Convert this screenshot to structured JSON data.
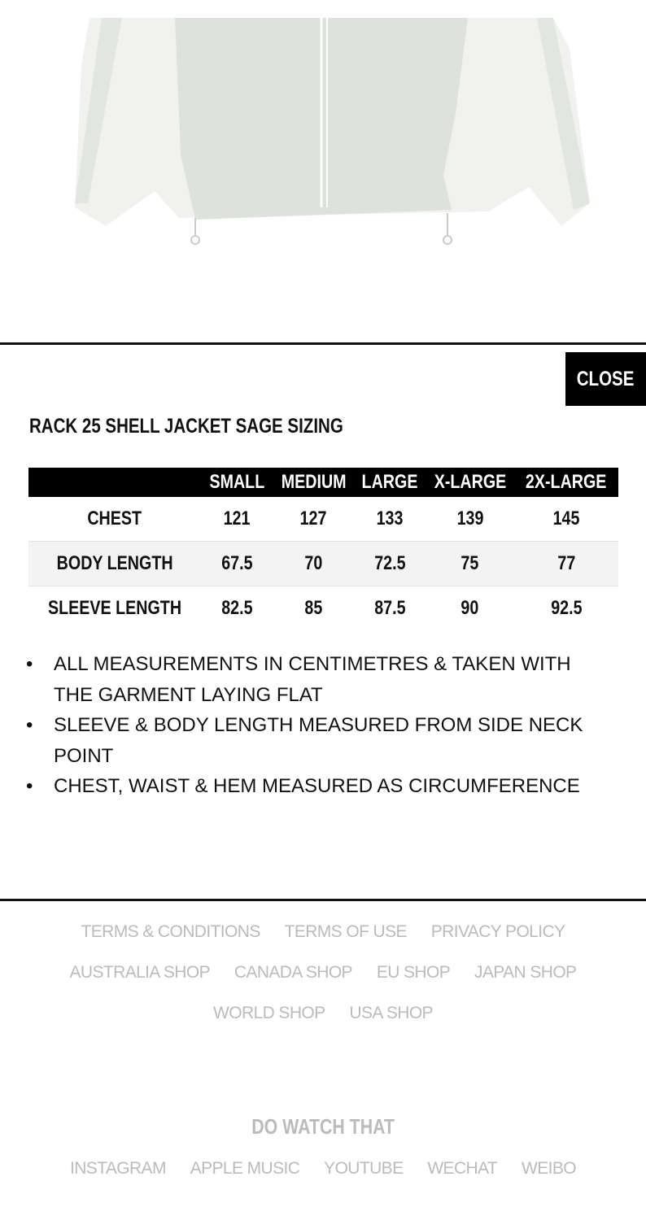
{
  "modal": {
    "close_label": "CLOSE",
    "title": "RACK 25 SHELL JACKET SAGE SIZING"
  },
  "size_table": {
    "headers": [
      "",
      "SMALL",
      "MEDIUM",
      "LARGE",
      "X-LARGE",
      "2X-LARGE"
    ],
    "rows": [
      {
        "label": "CHEST",
        "values": [
          "121",
          "127",
          "133",
          "139",
          "145"
        ]
      },
      {
        "label": "BODY LENGTH",
        "values": [
          "67.5",
          "70",
          "72.5",
          "75",
          "77"
        ]
      },
      {
        "label": "SLEEVE LENGTH",
        "values": [
          "82.5",
          "85",
          "87.5",
          "90",
          "92.5"
        ]
      }
    ]
  },
  "notes": [
    "ALL MEASUREMENTS IN CENTIMETRES & TAKEN WITH THE GARMENT LAYING FLAT",
    "SLEEVE & BODY LENGTH MEASURED FROM SIDE NECK POINT",
    "CHEST, WAIST & HEM MEASURED AS CIRCUMFERENCE"
  ],
  "footer": {
    "legal_links": [
      "TERMS & CONDITIONS",
      "TERMS OF USE",
      "PRIVACY POLICY"
    ],
    "shop_links_1": [
      "AUSTRALIA SHOP",
      "CANADA SHOP",
      "EU SHOP",
      "JAPAN SHOP"
    ],
    "shop_links_2": [
      "WORLD SHOP",
      "USA SHOP"
    ],
    "brand": "DO WATCH THAT",
    "social_links": [
      "INSTAGRAM",
      "APPLE MUSIC",
      "YOUTUBE",
      "WECHAT",
      "WEIBO"
    ]
  },
  "colors": {
    "jacket_sage": "#dde3dc",
    "jacket_white": "#f1f2f0",
    "footer_text": "#bbbbbb"
  }
}
